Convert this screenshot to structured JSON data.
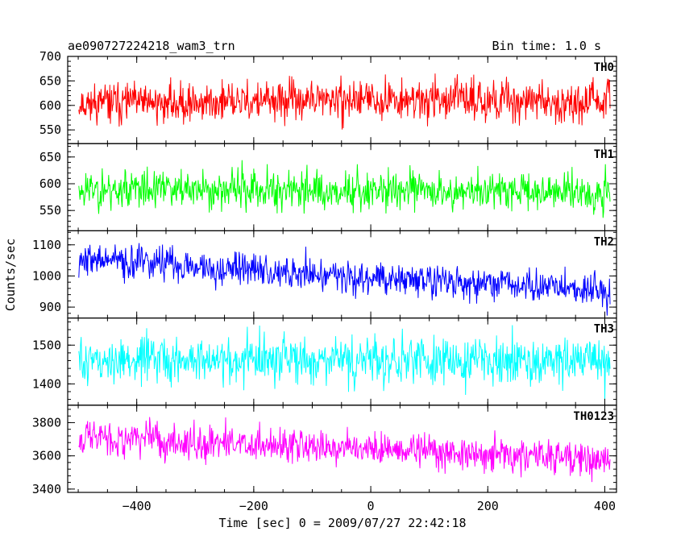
{
  "chart_data": {
    "type": "line",
    "title": "ae090727224218_wam3_trn",
    "subtitle": "Bin time: 1.0 s",
    "xlabel": "Time [sec] 0 = 2009/07/27 22:42:18",
    "ylabel": "Counts/sec",
    "xlim": [
      -518,
      420
    ],
    "x_ticks": [
      -400,
      -200,
      0,
      200,
      400
    ],
    "x_tick_labels": [
      "−400",
      "−200",
      "0",
      "200",
      "400"
    ],
    "x_data_range": [
      -499,
      409
    ],
    "bin_time": 1.0,
    "grid": false,
    "legend": "none",
    "panels": [
      {
        "name": "TH0",
        "color": "#ff0000",
        "ylim": [
          522,
          700
        ],
        "y_ticks": [
          550,
          600,
          650,
          700
        ],
        "y_tick_labels": [
          "550",
          "600",
          "650",
          "700"
        ],
        "trend": [
          [
            -499,
            605
          ],
          [
            -300,
            605
          ],
          [
            0,
            612
          ],
          [
            200,
            612
          ],
          [
            409,
            605
          ]
        ],
        "noise": 28,
        "seed": 11
      },
      {
        "name": "TH1",
        "color": "#00ff00",
        "ylim": [
          512,
          675
        ],
        "y_ticks": [
          550,
          600,
          650
        ],
        "y_tick_labels": [
          "550",
          "600",
          "650"
        ],
        "trend": [
          [
            -499,
            590
          ],
          [
            0,
            588
          ],
          [
            409,
            585
          ]
        ],
        "noise": 26,
        "seed": 23
      },
      {
        "name": "TH2",
        "color": "#0000ff",
        "ylim": [
          865,
          1145
        ],
        "y_ticks": [
          900,
          1000,
          1100
        ],
        "y_tick_labels": [
          "900",
          "1000",
          "1100"
        ],
        "trend": [
          [
            -499,
            1055
          ],
          [
            -200,
            1020
          ],
          [
            0,
            995
          ],
          [
            200,
            975
          ],
          [
            409,
            950
          ]
        ],
        "noise": 38,
        "seed": 37
      },
      {
        "name": "TH3",
        "color": "#00ffff",
        "ylim": [
          1345,
          1570
        ],
        "y_ticks": [
          1400,
          1500
        ],
        "y_tick_labels": [
          "1400",
          "1500"
        ],
        "trend": [
          [
            -499,
            1460
          ],
          [
            0,
            1460
          ],
          [
            409,
            1458
          ]
        ],
        "noise": 42,
        "seed": 51
      },
      {
        "name": "TH0123",
        "color": "#ff00ff",
        "ylim": [
          3380,
          3905
        ],
        "y_ticks": [
          3400,
          3600,
          3800
        ],
        "y_tick_labels": [
          "3400",
          "3600",
          "3800"
        ],
        "trend": [
          [
            -499,
            3720
          ],
          [
            -200,
            3670
          ],
          [
            0,
            3640
          ],
          [
            200,
            3620
          ],
          [
            409,
            3570
          ]
        ],
        "noise": 75,
        "seed": 67
      }
    ]
  }
}
